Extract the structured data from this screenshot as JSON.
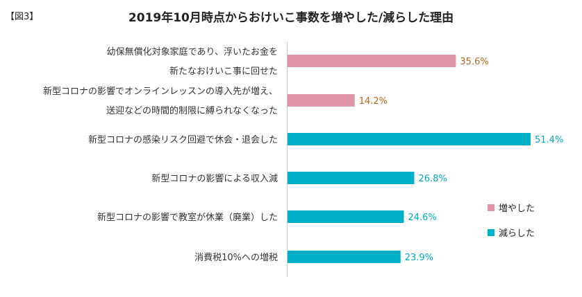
{
  "figure_label": "【図3】",
  "chart_data": {
    "type": "bar",
    "orientation": "horizontal",
    "title": "2019年10月時点からおけいこ事数を増やした/減らした理由",
    "categories": [
      [
        "幼保無償化対象家庭であり、浮いたお金を",
        "新たなおけいこ事に回せた"
      ],
      [
        "新型コロナの影響でオンラインレッスンの導入先が増え、",
        "送迎などの時間的制限に縛られなくなった"
      ],
      [
        "新型コロナの感染リスク回避で休会・退会した"
      ],
      [
        "新型コロナの影響による収入減"
      ],
      [
        "新型コロナの影響で教室が休業（廃業）した"
      ],
      [
        "消費税10%への増税"
      ]
    ],
    "values": [
      35.6,
      14.2,
      51.4,
      26.8,
      24.6,
      23.9
    ],
    "value_labels": [
      "35.6%",
      "14.2%",
      "51.4%",
      "26.8%",
      "24.6%",
      "23.9%"
    ],
    "series_index": [
      0,
      0,
      1,
      1,
      1,
      1
    ],
    "series": [
      {
        "name": "増やした",
        "color": "#e096a8",
        "label_color": "#b5651d"
      },
      {
        "name": "減らした",
        "color": "#00b0c8",
        "label_color": "#00a8c0"
      }
    ],
    "xlim": [
      0,
      55
    ],
    "grid": false,
    "legend_position": "right"
  }
}
